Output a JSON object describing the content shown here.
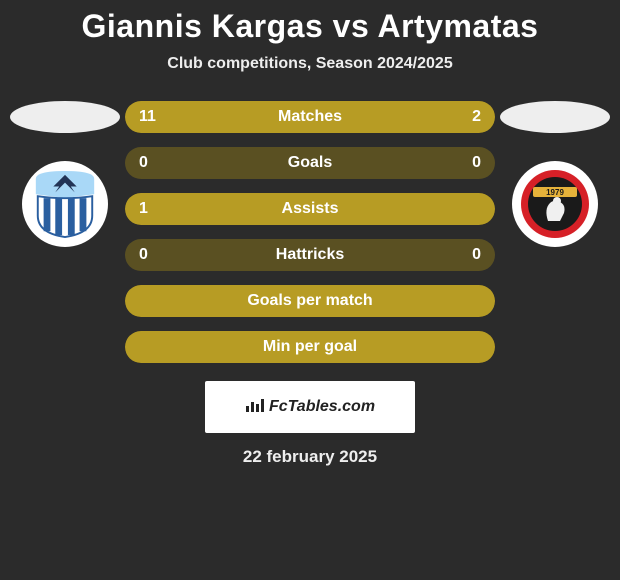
{
  "header": {
    "title": "Giannis Kargas vs Artymatas",
    "subtitle": "Club competitions, Season 2024/2025"
  },
  "left_team": {
    "crest_bg": "#ffffff",
    "colors": {
      "top": "#a9d8f7",
      "shield_border": "#2a5fa0",
      "stripes": "#2a5fa0",
      "eagle": "#223355"
    }
  },
  "right_team": {
    "crest_bg": "#ffffff",
    "colors": {
      "outer": "#d62027",
      "inner": "#1a1a1a",
      "figure": "#f0f0f0",
      "year_band": "#e6b23a",
      "year": "1979"
    }
  },
  "stats": [
    {
      "label": "Matches",
      "left_value": "11",
      "right_value": "2",
      "left_pct": 73,
      "right_pct": 27,
      "show_values": true,
      "bar_bg": "#5a5022",
      "fill_color": "#b79c24"
    },
    {
      "label": "Goals",
      "left_value": "0",
      "right_value": "0",
      "left_pct": 0,
      "right_pct": 0,
      "show_values": true,
      "bar_bg": "#5a5022",
      "fill_color": "#b79c24"
    },
    {
      "label": "Assists",
      "left_value": "1",
      "right_value": "",
      "left_pct": 100,
      "right_pct": 0,
      "show_values": true,
      "bar_bg": "#5a5022",
      "fill_color": "#b79c24"
    },
    {
      "label": "Hattricks",
      "left_value": "0",
      "right_value": "0",
      "left_pct": 0,
      "right_pct": 0,
      "show_values": true,
      "bar_bg": "#5a5022",
      "fill_color": "#b79c24"
    },
    {
      "label": "Goals per match",
      "left_value": "",
      "right_value": "",
      "left_pct": 100,
      "right_pct": 0,
      "show_values": false,
      "bar_bg": "#5a5022",
      "fill_color": "#b79c24"
    },
    {
      "label": "Min per goal",
      "left_value": "",
      "right_value": "",
      "left_pct": 100,
      "right_pct": 0,
      "show_values": false,
      "bar_bg": "#5a5022",
      "fill_color": "#b79c24"
    }
  ],
  "layout": {
    "stat_row_height": 32,
    "stat_row_radius": 16,
    "stat_label_fontsize": 16,
    "stat_label_fontweight": 700,
    "stat_label_color": "#ffffff",
    "stat_value_fontsize": 16,
    "page_bg": "#2b2b2b",
    "ellipse_color": "#eeeeee"
  },
  "footer": {
    "brand": "FcTables.com",
    "date": "22 february 2025",
    "box_bg": "#ffffff",
    "box_text_color": "#222222"
  }
}
